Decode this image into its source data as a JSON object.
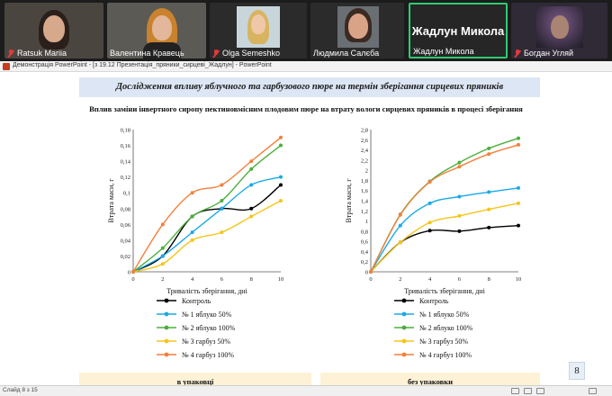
{
  "window": {
    "title": "Демонстрація PowerPoint - [з 19.12 Презентація_пряники_сирцеві_Жадлун] - PowerPoint"
  },
  "participants": [
    {
      "name": "Ratsuk Mariia",
      "muted": true
    },
    {
      "name": "Валентина Кравець",
      "muted": false
    },
    {
      "name": "Olga Semeshko",
      "muted": true
    },
    {
      "name": "Людмила Салєба",
      "muted": false
    },
    {
      "name": "Жадлун Микола",
      "muted": false,
      "active": true,
      "big_name": "Жадлун Микола"
    },
    {
      "name": "Богдан Угляй",
      "muted": true
    }
  ],
  "slide": {
    "banner": "Дослідження впливу яблучного та гарбузового пюре на термін зберігання сирцевих пряників",
    "subtitle": "Вплив заміни інвертного сиропу пектиновмісним плодовим пюре на втрату вологи сирцевих пряників в процесі зберігання",
    "left_caption": "в упаковці",
    "right_caption": "без упаковки",
    "page_number": "8"
  },
  "chart_data": [
    {
      "type": "line",
      "xlabel": "Тривалість зберігання, дні",
      "ylabel": "Втрата маси, г",
      "x": [
        0,
        2,
        4,
        6,
        8,
        10
      ],
      "xticks": [
        "0",
        "2",
        "4",
        "6",
        "8",
        "10"
      ],
      "ylim": [
        0,
        0.18
      ],
      "yticks": [
        "0",
        "0,02",
        "0,04",
        "0,06",
        "0,08",
        "0,1",
        "0,12",
        "0,14",
        "0,16",
        "0,18"
      ],
      "grid": false,
      "legend": "bottom",
      "series": [
        {
          "name": "Контроль",
          "color": "#000000",
          "values": [
            0,
            0.02,
            0.07,
            0.08,
            0.08,
            0.11
          ]
        },
        {
          "name": "№ 1 яблуко 50%",
          "color": "#1aa9e8",
          "values": [
            0,
            0.02,
            0.05,
            0.08,
            0.11,
            0.12
          ]
        },
        {
          "name": "№ 2 яблуко 100%",
          "color": "#4caf3c",
          "values": [
            0,
            0.03,
            0.07,
            0.09,
            0.13,
            0.16
          ]
        },
        {
          "name": "№ 3 гарбуз 50%",
          "color": "#f5c518",
          "values": [
            0,
            0.01,
            0.04,
            0.05,
            0.07,
            0.09
          ]
        },
        {
          "name": "№ 4 гарбуз 100%",
          "color": "#f47f3a",
          "values": [
            0,
            0.06,
            0.1,
            0.11,
            0.14,
            0.17
          ]
        }
      ]
    },
    {
      "type": "line",
      "xlabel": "Тривалість зберігання, дні",
      "ylabel": "Втрата маси, г",
      "x": [
        0,
        2,
        4,
        6,
        8,
        10
      ],
      "xticks": [
        "0",
        "2",
        "4",
        "6",
        "8",
        "10"
      ],
      "ylim": [
        0,
        2.8
      ],
      "yticks": [
        "0",
        "0,2",
        "0,4",
        "0,6",
        "0,8",
        "1",
        "1,2",
        "1,4",
        "1,6",
        "1,8",
        "2",
        "2,2",
        "2,4",
        "2,6",
        "2,8"
      ],
      "grid": false,
      "legend": "bottom",
      "series": [
        {
          "name": "Контроль",
          "color": "#000000",
          "values": [
            0,
            0.58,
            0.81,
            0.8,
            0.87,
            0.91
          ]
        },
        {
          "name": "№ 1 яблуко 50%",
          "color": "#1aa9e8",
          "values": [
            0,
            0.91,
            1.35,
            1.48,
            1.57,
            1.65
          ]
        },
        {
          "name": "№ 2 яблуко 100%",
          "color": "#4caf3c",
          "values": [
            0,
            1.13,
            1.78,
            2.15,
            2.43,
            2.63
          ]
        },
        {
          "name": "№ 3 гарбуз 50%",
          "color": "#f5c518",
          "values": [
            0,
            0.58,
            0.97,
            1.1,
            1.23,
            1.35
          ]
        },
        {
          "name": "№ 4 гарбуз 100%",
          "color": "#f47f3a",
          "values": [
            0,
            1.12,
            1.77,
            2.07,
            2.32,
            2.5
          ]
        }
      ]
    }
  ],
  "statusbar": {
    "slide_info": "Слайд 8 з 15",
    "zoom": "",
    "controls": [
      "normal-view-icon",
      "slide-sorter-icon",
      "reading-view-icon",
      "slideshow-icon"
    ]
  }
}
